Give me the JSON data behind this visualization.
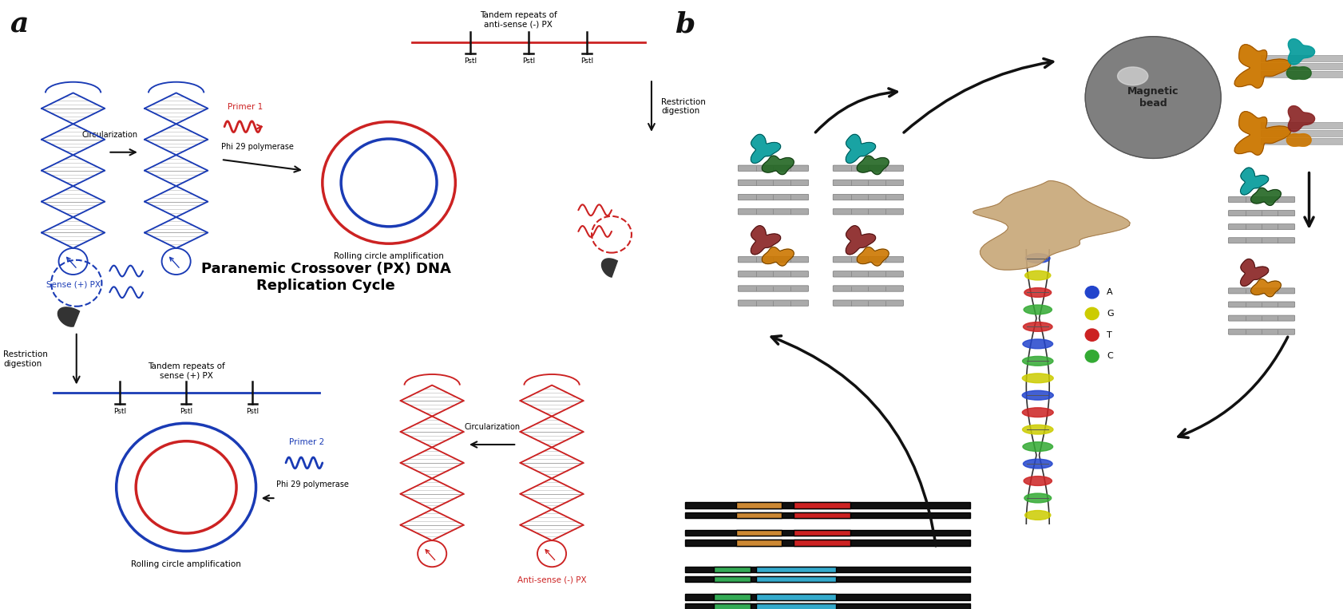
{
  "figure_width": 16.82,
  "figure_height": 7.63,
  "dpi": 100,
  "bg": "#ffffff",
  "black": "#111111",
  "blue": "#1a3bb5",
  "red": "#cc2222",
  "gray": "#888888",
  "panel_a": "a",
  "panel_b": "b",
  "label_fs": 26,
  "title_text": "Paranemic Crossover (PX) DNA\nReplication Cycle",
  "title_fs": 13,
  "sense_label": "Sense (+) PX",
  "anti_label": "Anti-sense (-) PX",
  "rolling_label": "Rolling circle amplification",
  "restrict_label": "Restriction\ndigestion",
  "circ_label": "Circularization",
  "tandem_anti": "Tandem repeats of\nanti-sense (-) PX",
  "tandem_sense": "Tandem repeats of\nsense (+) PX",
  "primer1": "Primer 1",
  "primer2": "Primer 2",
  "phi29": "Phi 29 polymerase",
  "psti": "PstI",
  "mag_bead": "Magnetic\nbead",
  "leg_A": "A",
  "leg_G": "G",
  "leg_T": "T",
  "leg_C": "C",
  "col_A": "#2244cc",
  "col_G": "#cccc00",
  "col_T": "#cc2222",
  "col_C": "#33aa33",
  "orange": "#cc7700",
  "teal": "#009999",
  "green": "#226622",
  "dark_red": "#882222",
  "tan": "#c8a87a"
}
